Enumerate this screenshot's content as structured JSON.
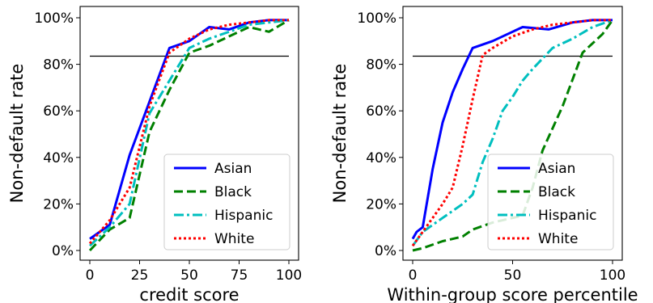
{
  "chart_data": [
    {
      "type": "line",
      "xlabel": "credit score",
      "ylabel": "Non-default rate",
      "xlim": [
        0,
        100
      ],
      "ylim": [
        0,
        1
      ],
      "xticks": [
        {
          "value": 0,
          "label": "0"
        },
        {
          "value": 25,
          "label": "25"
        },
        {
          "value": 50,
          "label": "50"
        },
        {
          "value": 75,
          "label": "75"
        },
        {
          "value": 100,
          "label": "100"
        }
      ],
      "yticks": [
        {
          "value": 0,
          "label": "0%"
        },
        {
          "value": 0.2,
          "label": "20%"
        },
        {
          "value": 0.4,
          "label": "40%"
        },
        {
          "value": 0.6,
          "label": "60%"
        },
        {
          "value": 0.8,
          "label": "80%"
        },
        {
          "value": 1.0,
          "label": "100%"
        }
      ],
      "reference_line": {
        "y": 0.835,
        "x_range": [
          0,
          100
        ]
      },
      "legend": {
        "position": "lower right"
      },
      "grid": false,
      "series": [
        {
          "name": "Asian",
          "color": "#0000ff",
          "dash": "solid",
          "x": [
            0,
            10,
            20,
            30,
            40,
            50,
            60,
            70,
            80,
            90,
            100
          ],
          "y": [
            0.05,
            0.11,
            0.41,
            0.64,
            0.87,
            0.9,
            0.96,
            0.95,
            0.98,
            0.99,
            0.99
          ]
        },
        {
          "name": "Black",
          "color": "#008000",
          "dash": "dashed",
          "x": [
            0,
            10,
            20,
            30,
            40,
            50,
            60,
            70,
            80,
            90,
            100
          ],
          "y": [
            0.0,
            0.09,
            0.14,
            0.51,
            0.69,
            0.85,
            0.88,
            0.92,
            0.96,
            0.94,
            0.99
          ]
        },
        {
          "name": "Hispanic",
          "color": "#00bfbf",
          "dash": "dashdot",
          "x": [
            0,
            10,
            20,
            30,
            40,
            50,
            60,
            70,
            80,
            90,
            100
          ],
          "y": [
            0.02,
            0.1,
            0.2,
            0.59,
            0.73,
            0.87,
            0.91,
            0.94,
            0.97,
            0.98,
            0.99
          ]
        },
        {
          "name": "White",
          "color": "#ff0000",
          "dash": "dotted",
          "x": [
            0,
            10,
            20,
            30,
            40,
            50,
            60,
            70,
            80,
            90,
            100
          ],
          "y": [
            0.03,
            0.13,
            0.27,
            0.62,
            0.85,
            0.91,
            0.95,
            0.97,
            0.98,
            0.99,
            0.99
          ]
        }
      ]
    },
    {
      "type": "line",
      "xlabel": "Within-group score percentile",
      "ylabel": "Non-default rate",
      "xlim": [
        0,
        100
      ],
      "ylim": [
        0,
        1
      ],
      "xticks": [
        {
          "value": 0,
          "label": "0"
        },
        {
          "value": 50,
          "label": "50"
        },
        {
          "value": 100,
          "label": "100"
        }
      ],
      "yticks": [
        {
          "value": 0,
          "label": "0%"
        },
        {
          "value": 0.2,
          "label": "20%"
        },
        {
          "value": 0.4,
          "label": "40%"
        },
        {
          "value": 0.6,
          "label": "60%"
        },
        {
          "value": 0.8,
          "label": "80%"
        },
        {
          "value": 1.0,
          "label": "100%"
        }
      ],
      "reference_line": {
        "y": 0.835,
        "x_range": [
          0,
          100
        ]
      },
      "legend": {
        "position": "lower right"
      },
      "grid": false,
      "series": [
        {
          "name": "Asian",
          "color": "#0000ff",
          "dash": "solid",
          "x": [
            0,
            2,
            5,
            10,
            15,
            20,
            25,
            30,
            40,
            55,
            68,
            80,
            90,
            100
          ],
          "y": [
            0.05,
            0.08,
            0.1,
            0.35,
            0.55,
            0.68,
            0.78,
            0.87,
            0.9,
            0.96,
            0.95,
            0.98,
            0.99,
            0.99
          ]
        },
        {
          "name": "Black",
          "color": "#008000",
          "dash": "dashed",
          "x": [
            0,
            5,
            15,
            25,
            30,
            40,
            55,
            60,
            65,
            75,
            85,
            95,
            100
          ],
          "y": [
            0.0,
            0.01,
            0.04,
            0.06,
            0.09,
            0.12,
            0.15,
            0.27,
            0.43,
            0.62,
            0.85,
            0.93,
            0.99
          ]
        },
        {
          "name": "Hispanic",
          "color": "#00bfbf",
          "dash": "dashdot",
          "x": [
            0,
            5,
            15,
            25,
            30,
            35,
            40,
            45,
            50,
            55,
            60,
            70,
            80,
            90,
            100
          ],
          "y": [
            0.02,
            0.08,
            0.14,
            0.2,
            0.24,
            0.38,
            0.48,
            0.6,
            0.66,
            0.73,
            0.78,
            0.87,
            0.91,
            0.96,
            0.99
          ]
        },
        {
          "name": "White",
          "color": "#ff0000",
          "dash": "dotted",
          "x": [
            0,
            5,
            10,
            15,
            20,
            25,
            30,
            35,
            40,
            50,
            60,
            70,
            80,
            90,
            100
          ],
          "y": [
            0.02,
            0.08,
            0.14,
            0.2,
            0.27,
            0.45,
            0.65,
            0.84,
            0.87,
            0.92,
            0.95,
            0.97,
            0.98,
            0.99,
            0.99
          ]
        }
      ]
    }
  ]
}
